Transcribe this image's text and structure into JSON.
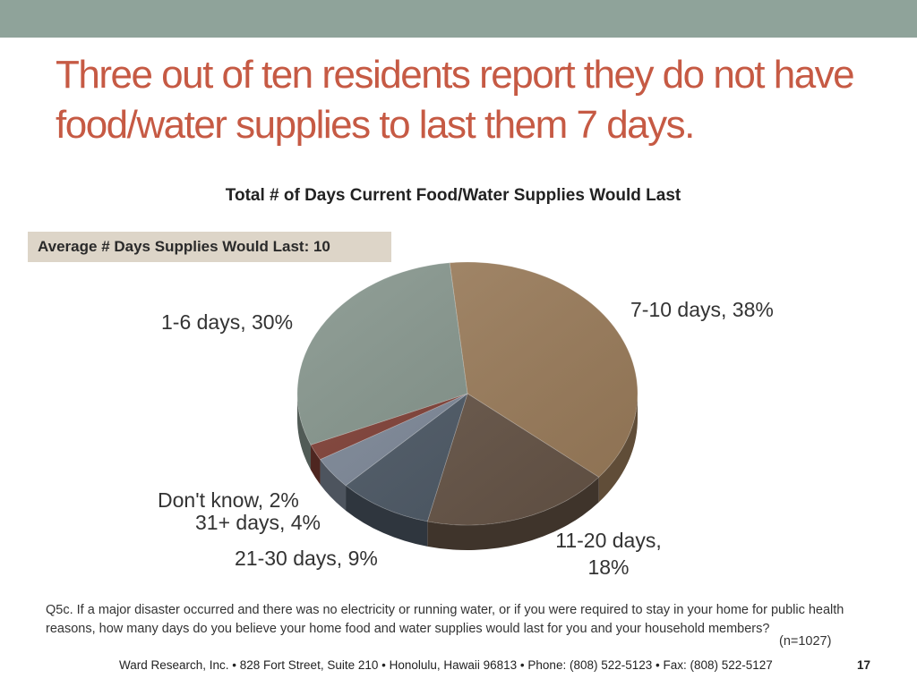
{
  "slide": {
    "headline": "Three out of ten residents report they do not have food/water supplies to last them 7 days.",
    "average_label": "Average # Days Supplies Would Last: 10",
    "footnote": "Q5c. If a major disaster occurred and there was no electricity or running water, or if you were required to stay in your home for public health reasons, how many days do you believe your home food and water supplies would last for you and your household members?",
    "sample_size": "(n=1027)",
    "footer": "Ward Research, Inc. • 828 Fort Street, Suite 210 • Honolulu, Hawaii 96813 • Phone: (808) 522-5123 • Fax: (808) 522-5127",
    "page_number": "17"
  },
  "chart_data": {
    "type": "pie",
    "title": "Total # of Days Current Food/Water Supplies Would Last",
    "slices": [
      {
        "name": "7-10 days",
        "value": 38,
        "color": "#9b7c5a",
        "label_lines": [
          "7-10 days, 38%"
        ]
      },
      {
        "name": "11-20 days",
        "value": 18,
        "color": "#665446",
        "label_lines": [
          "11-20 days,",
          "18%"
        ]
      },
      {
        "name": "21-30 days",
        "value": 9,
        "color": "#4b5764",
        "label_lines": [
          "21-30 days, 9%"
        ]
      },
      {
        "name": "31+ days",
        "value": 4,
        "color": "#7c8797",
        "label_lines": [
          "31+ days, 4%"
        ]
      },
      {
        "name": "Don't know",
        "value": 2,
        "color": "#7e3d33",
        "label_lines": [
          "Don't know, 2%"
        ]
      },
      {
        "name": "1-6 days",
        "value": 30,
        "color": "#83938a",
        "label_lines": [
          "1-6 days, 30%"
        ]
      }
    ]
  }
}
